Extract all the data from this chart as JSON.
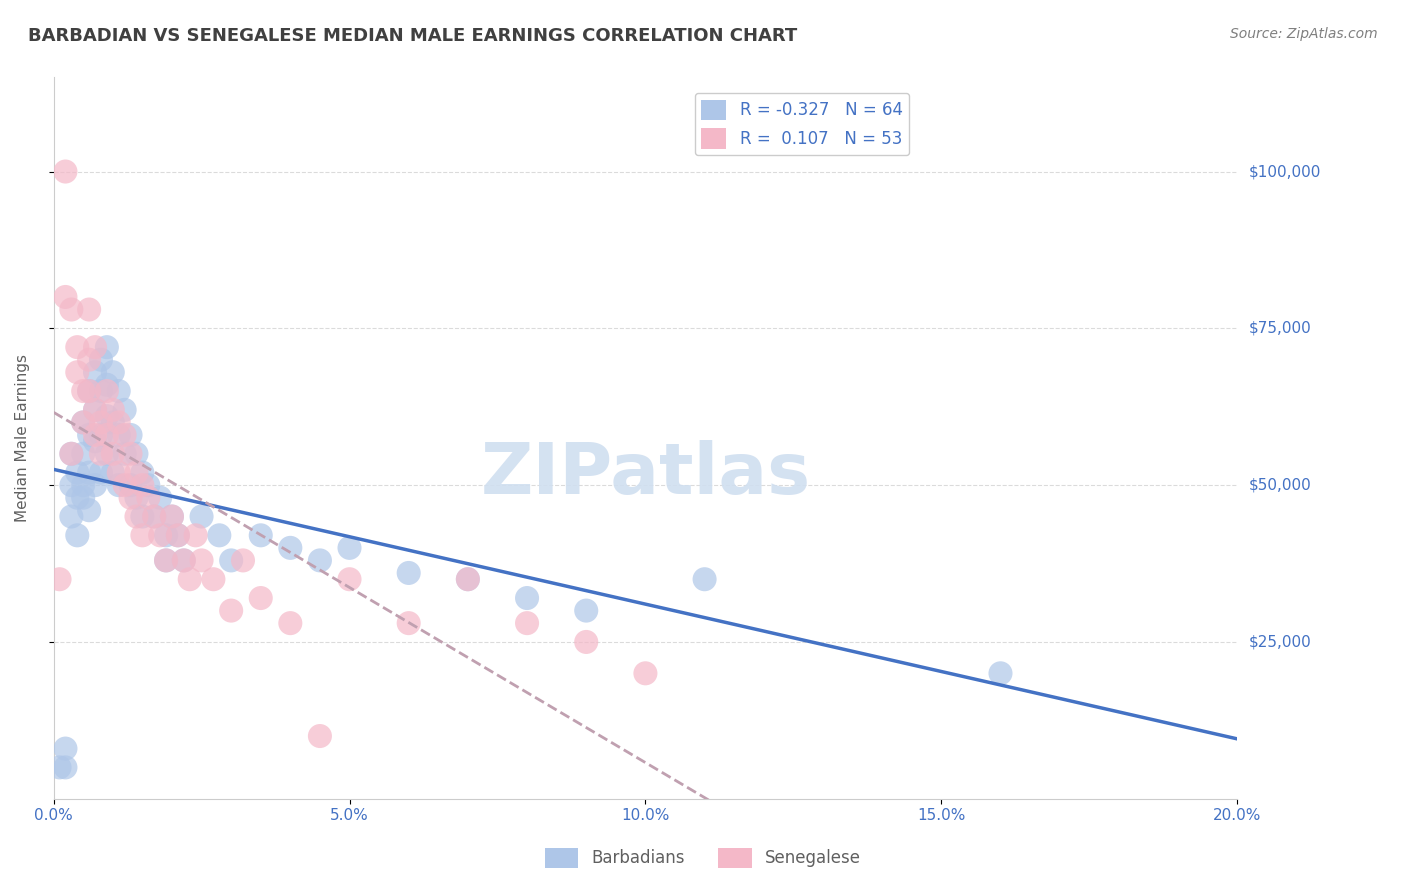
{
  "title": "BARBADIAN VS SENEGALESE MEDIAN MALE EARNINGS CORRELATION CHART",
  "source": "Source: ZipAtlas.com",
  "xlabel_bottom": "",
  "ylabel": "Median Male Earnings",
  "xlim": [
    0.0,
    0.2
  ],
  "ylim": [
    0,
    110000
  ],
  "ytick_labels": [
    "$25,000",
    "$50,000",
    "$75,000",
    "$100,000"
  ],
  "ytick_values": [
    25000,
    50000,
    75000,
    100000
  ],
  "xtick_labels": [
    "0.0%",
    "5.0%",
    "10.0%",
    "15.0%",
    "20.0%"
  ],
  "xtick_values": [
    0.0,
    0.05,
    0.1,
    0.15,
    0.2
  ],
  "legend_entries": [
    {
      "label": "R = -0.327   N = 64",
      "color": "#aec6e8"
    },
    {
      "label": "R =  0.107   N = 53",
      "color": "#f4b8c8"
    }
  ],
  "legend_bottom": [
    "Barbadians",
    "Senegalese"
  ],
  "legend_bottom_colors": [
    "#aec6e8",
    "#f4b8c8"
  ],
  "barbadian_color": "#aec6e8",
  "senegalese_color": "#f4b8c8",
  "trend_barbadian_color": "#4472c4",
  "trend_senegalese_color": "#f4a0b0",
  "background_color": "#ffffff",
  "grid_color": "#cccccc",
  "title_color": "#404040",
  "axis_label_color": "#606060",
  "tick_label_color": "#4472c4",
  "watermark_text": "ZIPatlas",
  "watermark_color": "#d0dff0",
  "R_barbadian": -0.327,
  "N_barbadian": 64,
  "R_senegalese": 0.107,
  "N_senegalese": 53,
  "barbadian_x": [
    0.001,
    0.002,
    0.002,
    0.003,
    0.003,
    0.003,
    0.004,
    0.004,
    0.004,
    0.005,
    0.005,
    0.005,
    0.005,
    0.006,
    0.006,
    0.006,
    0.006,
    0.007,
    0.007,
    0.007,
    0.007,
    0.008,
    0.008,
    0.008,
    0.008,
    0.009,
    0.009,
    0.009,
    0.009,
    0.01,
    0.01,
    0.01,
    0.011,
    0.011,
    0.011,
    0.012,
    0.012,
    0.013,
    0.013,
    0.014,
    0.014,
    0.015,
    0.015,
    0.016,
    0.017,
    0.018,
    0.019,
    0.019,
    0.02,
    0.021,
    0.022,
    0.025,
    0.028,
    0.03,
    0.035,
    0.04,
    0.045,
    0.05,
    0.06,
    0.07,
    0.08,
    0.09,
    0.11,
    0.16
  ],
  "barbadian_y": [
    5000,
    8000,
    5000,
    45000,
    50000,
    55000,
    48000,
    52000,
    42000,
    60000,
    55000,
    50000,
    48000,
    65000,
    58000,
    52000,
    46000,
    68000,
    62000,
    57000,
    50000,
    70000,
    65000,
    58000,
    52000,
    72000,
    66000,
    61000,
    55000,
    68000,
    60000,
    52000,
    65000,
    58000,
    50000,
    62000,
    55000,
    58000,
    50000,
    55000,
    48000,
    52000,
    45000,
    50000,
    45000,
    48000,
    42000,
    38000,
    45000,
    42000,
    38000,
    45000,
    42000,
    38000,
    42000,
    40000,
    38000,
    40000,
    36000,
    35000,
    32000,
    30000,
    35000,
    20000
  ],
  "senegalese_x": [
    0.001,
    0.002,
    0.002,
    0.003,
    0.003,
    0.004,
    0.004,
    0.005,
    0.005,
    0.006,
    0.006,
    0.006,
    0.007,
    0.007,
    0.007,
    0.008,
    0.008,
    0.009,
    0.009,
    0.01,
    0.01,
    0.011,
    0.011,
    0.012,
    0.012,
    0.013,
    0.013,
    0.014,
    0.014,
    0.015,
    0.015,
    0.016,
    0.017,
    0.018,
    0.019,
    0.02,
    0.021,
    0.022,
    0.023,
    0.024,
    0.025,
    0.027,
    0.03,
    0.032,
    0.035,
    0.04,
    0.045,
    0.05,
    0.06,
    0.07,
    0.08,
    0.09,
    0.1
  ],
  "senegalese_y": [
    35000,
    80000,
    100000,
    78000,
    55000,
    72000,
    68000,
    65000,
    60000,
    70000,
    65000,
    78000,
    62000,
    58000,
    72000,
    60000,
    55000,
    65000,
    58000,
    62000,
    55000,
    60000,
    52000,
    58000,
    50000,
    55000,
    48000,
    52000,
    45000,
    50000,
    42000,
    48000,
    45000,
    42000,
    38000,
    45000,
    42000,
    38000,
    35000,
    42000,
    38000,
    35000,
    30000,
    38000,
    32000,
    28000,
    10000,
    35000,
    28000,
    35000,
    28000,
    25000,
    20000
  ]
}
